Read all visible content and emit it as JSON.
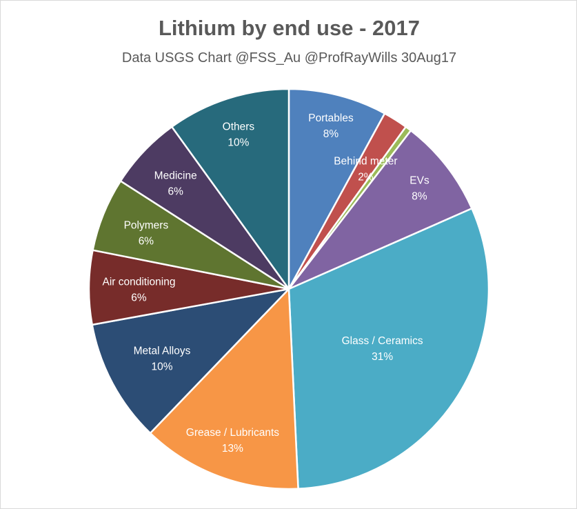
{
  "chart_data": {
    "type": "pie",
    "title": "Lithium by end use - 2017",
    "subtitle": "Data USGS Chart @FSS_Au  @ProfRayWills 30Aug17",
    "slices": [
      {
        "label": "Portables",
        "value": 8,
        "display": "8%",
        "color": "#4f81bd"
      },
      {
        "label": "Behind meter",
        "value": 2,
        "display": "2%",
        "color": "#c0504d"
      },
      {
        "label": "",
        "value": 0.5,
        "display": "",
        "color": "#9bbb59"
      },
      {
        "label": "EVs",
        "value": 8,
        "display": "8%",
        "color": "#8064a2"
      },
      {
        "label": "Glass / Ceramics",
        "value": 31,
        "display": "31%",
        "color": "#4bacc6"
      },
      {
        "label": "Grease / Lubricants",
        "value": 13,
        "display": "13%",
        "color": "#f79646"
      },
      {
        "label": "Metal Alloys",
        "value": 10,
        "display": "10%",
        "color": "#2c4d75"
      },
      {
        "label": "Air conditioning",
        "value": 6,
        "display": "6%",
        "color": "#772c2a"
      },
      {
        "label": "Polymers",
        "value": 6,
        "display": "6%",
        "color": "#5f7530"
      },
      {
        "label": "Medicine",
        "value": 6,
        "display": "6%",
        "color": "#4d3b62"
      },
      {
        "label": "Others",
        "value": 10,
        "display": "10%",
        "color": "#276a7c"
      }
    ]
  }
}
